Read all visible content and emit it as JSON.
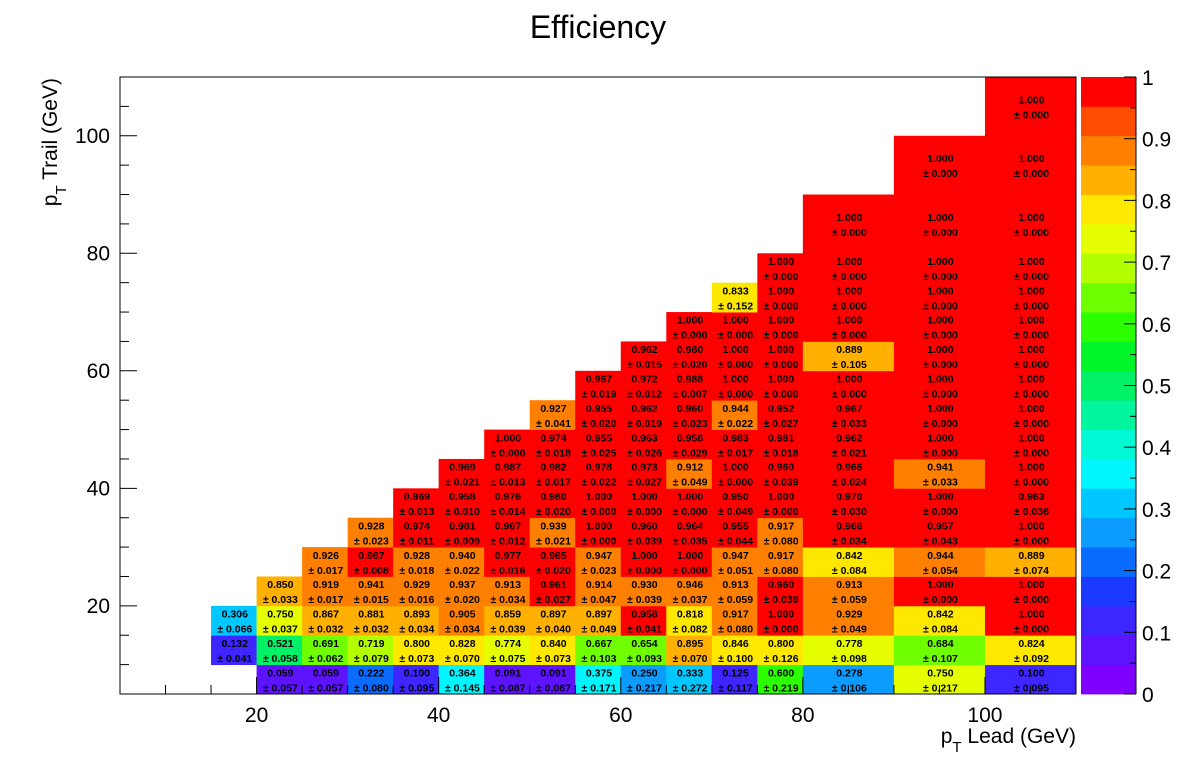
{
  "chart_data": {
    "type": "heatmap",
    "title": "Efficiency",
    "xlabel": "p_T Lead (GeV)",
    "ylabel": "p_T Trail (GeV)",
    "xlim": [
      5,
      110
    ],
    "ylim": [
      5,
      110
    ],
    "x_edges": [
      5,
      10,
      15,
      20,
      25,
      30,
      35,
      40,
      45,
      50,
      55,
      60,
      65,
      70,
      75,
      80,
      90,
      100,
      110
    ],
    "y_edges": [
      5,
      10,
      15,
      20,
      25,
      30,
      35,
      40,
      45,
      50,
      55,
      60,
      65,
      70,
      75,
      80,
      90,
      100,
      110
    ],
    "x_ticks": [
      20,
      40,
      60,
      80,
      100
    ],
    "y_ticks": [
      20,
      40,
      60,
      80,
      100
    ],
    "color_scale": {
      "min": 0,
      "max": 1,
      "ticks": [
        "0",
        "0.1",
        "0.2",
        "0.3",
        "0.4",
        "0.5",
        "0.6",
        "0.7",
        "0.8",
        "0.9",
        "1"
      ],
      "palette": [
        "#7f00ff",
        "#5e13ff",
        "#3d26ff",
        "#1c3aff",
        "#0a6bff",
        "#0b9cfd",
        "#00c7ff",
        "#00f5ff",
        "#00f8d5",
        "#00f59c",
        "#00f066",
        "#00f52b",
        "#2cff00",
        "#70ff00",
        "#b3ff00",
        "#e6ff00",
        "#ffe800",
        "#ffb000",
        "#ff8000",
        "#ff4d00",
        "#ff0000"
      ]
    },
    "cells": [
      {
        "xb": 3,
        "yb": 0,
        "value": "0.059",
        "error": "± 0.057"
      },
      {
        "xb": 4,
        "yb": 0,
        "value": "0.059",
        "error": "± 0.057"
      },
      {
        "xb": 5,
        "yb": 0,
        "value": "0.222",
        "error": "± 0.080"
      },
      {
        "xb": 6,
        "yb": 0,
        "value": "0.100",
        "error": "± 0.095"
      },
      {
        "xb": 7,
        "yb": 0,
        "value": "0.364",
        "error": "± 0.145"
      },
      {
        "xb": 8,
        "yb": 0,
        "value": "0.091",
        "error": "± 0.087"
      },
      {
        "xb": 9,
        "yb": 0,
        "value": "0.091",
        "error": "± 0.087"
      },
      {
        "xb": 10,
        "yb": 0,
        "value": "0.375",
        "error": "± 0.171"
      },
      {
        "xb": 11,
        "yb": 0,
        "value": "0.250",
        "error": "± 0.217"
      },
      {
        "xb": 12,
        "yb": 0,
        "value": "0.333",
        "error": "± 0.272"
      },
      {
        "xb": 13,
        "yb": 0,
        "value": "0.125",
        "error": "± 0.117"
      },
      {
        "xb": 14,
        "yb": 0,
        "value": "0.600",
        "error": "± 0.219"
      },
      {
        "xb": 15,
        "yb": 0,
        "value": "0.278",
        "error": "± 0.106"
      },
      {
        "xb": 16,
        "yb": 0,
        "value": "0.750",
        "error": "± 0.217"
      },
      {
        "xb": 17,
        "yb": 0,
        "value": "0.100",
        "error": "± 0.095"
      },
      {
        "xb": 2,
        "yb": 1,
        "value": "0.132",
        "error": "± 0.041"
      },
      {
        "xb": 3,
        "yb": 1,
        "value": "0.521",
        "error": "± 0.058"
      },
      {
        "xb": 4,
        "yb": 1,
        "value": "0.691",
        "error": "± 0.062"
      },
      {
        "xb": 5,
        "yb": 1,
        "value": "0.719",
        "error": "± 0.079"
      },
      {
        "xb": 6,
        "yb": 1,
        "value": "0.800",
        "error": "± 0.073"
      },
      {
        "xb": 7,
        "yb": 1,
        "value": "0.828",
        "error": "± 0.070"
      },
      {
        "xb": 8,
        "yb": 1,
        "value": "0.774",
        "error": "± 0.075"
      },
      {
        "xb": 9,
        "yb": 1,
        "value": "0.840",
        "error": "± 0.073"
      },
      {
        "xb": 10,
        "yb": 1,
        "value": "0.667",
        "error": "± 0.103"
      },
      {
        "xb": 11,
        "yb": 1,
        "value": "0.654",
        "error": "± 0.093"
      },
      {
        "xb": 12,
        "yb": 1,
        "value": "0.895",
        "error": "± 0.070"
      },
      {
        "xb": 13,
        "yb": 1,
        "value": "0.846",
        "error": "± 0.100"
      },
      {
        "xb": 14,
        "yb": 1,
        "value": "0.800",
        "error": "± 0.126"
      },
      {
        "xb": 15,
        "yb": 1,
        "value": "0.778",
        "error": "± 0.098"
      },
      {
        "xb": 16,
        "yb": 1,
        "value": "0.684",
        "error": "± 0.107"
      },
      {
        "xb": 17,
        "yb": 1,
        "value": "0.824",
        "error": "± 0.092"
      },
      {
        "xb": 2,
        "yb": 2,
        "value": "0.306",
        "error": "± 0.066"
      },
      {
        "xb": 3,
        "yb": 2,
        "value": "0.750",
        "error": "± 0.037"
      },
      {
        "xb": 4,
        "yb": 2,
        "value": "0.867",
        "error": "± 0.032"
      },
      {
        "xb": 5,
        "yb": 2,
        "value": "0.881",
        "error": "± 0.032"
      },
      {
        "xb": 6,
        "yb": 2,
        "value": "0.893",
        "error": "± 0.034"
      },
      {
        "xb": 7,
        "yb": 2,
        "value": "0.905",
        "error": "± 0.034"
      },
      {
        "xb": 8,
        "yb": 2,
        "value": "0.859",
        "error": "± 0.039"
      },
      {
        "xb": 9,
        "yb": 2,
        "value": "0.897",
        "error": "± 0.040"
      },
      {
        "xb": 10,
        "yb": 2,
        "value": "0.897",
        "error": "± 0.049"
      },
      {
        "xb": 11,
        "yb": 2,
        "value": "0.958",
        "error": "± 0.041"
      },
      {
        "xb": 12,
        "yb": 2,
        "value": "0.818",
        "error": "± 0.082"
      },
      {
        "xb": 13,
        "yb": 2,
        "value": "0.917",
        "error": "± 0.080"
      },
      {
        "xb": 14,
        "yb": 2,
        "value": "1.000",
        "error": "± 0.000"
      },
      {
        "xb": 15,
        "yb": 2,
        "value": "0.929",
        "error": "± 0.049"
      },
      {
        "xb": 16,
        "yb": 2,
        "value": "0.842",
        "error": "± 0.084"
      },
      {
        "xb": 17,
        "yb": 2,
        "value": "1.000",
        "error": "± 0.000"
      },
      {
        "xb": 3,
        "yb": 3,
        "value": "0.850",
        "error": "± 0.033"
      },
      {
        "xb": 4,
        "yb": 3,
        "value": "0.919",
        "error": "± 0.017"
      },
      {
        "xb": 5,
        "yb": 3,
        "value": "0.941",
        "error": "± 0.015"
      },
      {
        "xb": 6,
        "yb": 3,
        "value": "0.929",
        "error": "± 0.016"
      },
      {
        "xb": 7,
        "yb": 3,
        "value": "0.937",
        "error": "± 0.020"
      },
      {
        "xb": 8,
        "yb": 3,
        "value": "0.913",
        "error": "± 0.034"
      },
      {
        "xb": 9,
        "yb": 3,
        "value": "0.961",
        "error": "± 0.027"
      },
      {
        "xb": 10,
        "yb": 3,
        "value": "0.914",
        "error": "± 0.047"
      },
      {
        "xb": 11,
        "yb": 3,
        "value": "0.930",
        "error": "± 0.039"
      },
      {
        "xb": 12,
        "yb": 3,
        "value": "0.946",
        "error": "± 0.037"
      },
      {
        "xb": 13,
        "yb": 3,
        "value": "0.913",
        "error": "± 0.059"
      },
      {
        "xb": 14,
        "yb": 3,
        "value": "0.960",
        "error": "± 0.039"
      },
      {
        "xb": 15,
        "yb": 3,
        "value": "0.913",
        "error": "± 0.059"
      },
      {
        "xb": 16,
        "yb": 3,
        "value": "1.000",
        "error": "± 0.000"
      },
      {
        "xb": 17,
        "yb": 3,
        "value": "1.000",
        "error": "± 0.000"
      },
      {
        "xb": 4,
        "yb": 4,
        "value": "0.926",
        "error": "± 0.017"
      },
      {
        "xb": 5,
        "yb": 4,
        "value": "0.967",
        "error": "± 0.008"
      },
      {
        "xb": 6,
        "yb": 4,
        "value": "0.928",
        "error": "± 0.018"
      },
      {
        "xb": 7,
        "yb": 4,
        "value": "0.940",
        "error": "± 0.022"
      },
      {
        "xb": 8,
        "yb": 4,
        "value": "0.977",
        "error": "± 0.016"
      },
      {
        "xb": 9,
        "yb": 4,
        "value": "0.965",
        "error": "± 0.020"
      },
      {
        "xb": 10,
        "yb": 4,
        "value": "0.947",
        "error": "± 0.023"
      },
      {
        "xb": 11,
        "yb": 4,
        "value": "1.000",
        "error": "± 0.000"
      },
      {
        "xb": 12,
        "yb": 4,
        "value": "1.000",
        "error": "± 0.000"
      },
      {
        "xb": 13,
        "yb": 4,
        "value": "0.947",
        "error": "± 0.051"
      },
      {
        "xb": 14,
        "yb": 4,
        "value": "0.917",
        "error": "± 0.080"
      },
      {
        "xb": 15,
        "yb": 4,
        "value": "0.842",
        "error": "± 0.084"
      },
      {
        "xb": 16,
        "yb": 4,
        "value": "0.944",
        "error": "± 0.054"
      },
      {
        "xb": 17,
        "yb": 4,
        "value": "0.889",
        "error": "± 0.074"
      },
      {
        "xb": 5,
        "yb": 5,
        "value": "0.928",
        "error": "± 0.023"
      },
      {
        "xb": 6,
        "yb": 5,
        "value": "0.974",
        "error": "± 0.011"
      },
      {
        "xb": 7,
        "yb": 5,
        "value": "0.981",
        "error": "± 0.009"
      },
      {
        "xb": 8,
        "yb": 5,
        "value": "0.967",
        "error": "± 0.012"
      },
      {
        "xb": 9,
        "yb": 5,
        "value": "0.939",
        "error": "± 0.021"
      },
      {
        "xb": 10,
        "yb": 5,
        "value": "1.000",
        "error": "± 0.000"
      },
      {
        "xb": 11,
        "yb": 5,
        "value": "0.960",
        "error": "± 0.039"
      },
      {
        "xb": 12,
        "yb": 5,
        "value": "0.964",
        "error": "± 0.035"
      },
      {
        "xb": 13,
        "yb": 5,
        "value": "0.955",
        "error": "± 0.044"
      },
      {
        "xb": 14,
        "yb": 5,
        "value": "0.917",
        "error": "± 0.080"
      },
      {
        "xb": 15,
        "yb": 5,
        "value": "0.966",
        "error": "± 0.034"
      },
      {
        "xb": 16,
        "yb": 5,
        "value": "0.957",
        "error": "± 0.043"
      },
      {
        "xb": 17,
        "yb": 5,
        "value": "1.000",
        "error": "± 0.000"
      },
      {
        "xb": 6,
        "yb": 6,
        "value": "0.969",
        "error": "± 0.013"
      },
      {
        "xb": 7,
        "yb": 6,
        "value": "0.958",
        "error": "± 0.010"
      },
      {
        "xb": 8,
        "yb": 6,
        "value": "0.976",
        "error": "± 0.014"
      },
      {
        "xb": 9,
        "yb": 6,
        "value": "0.980",
        "error": "± 0.020"
      },
      {
        "xb": 10,
        "yb": 6,
        "value": "1.000",
        "error": "± 0.000"
      },
      {
        "xb": 11,
        "yb": 6,
        "value": "1.000",
        "error": "± 0.000"
      },
      {
        "xb": 12,
        "yb": 6,
        "value": "1.000",
        "error": "± 0.000"
      },
      {
        "xb": 13,
        "yb": 6,
        "value": "0.950",
        "error": "± 0.049"
      },
      {
        "xb": 14,
        "yb": 6,
        "value": "1.000",
        "error": "± 0.000"
      },
      {
        "xb": 15,
        "yb": 6,
        "value": "0.970",
        "error": "± 0.030"
      },
      {
        "xb": 16,
        "yb": 6,
        "value": "1.000",
        "error": "± 0.000"
      },
      {
        "xb": 17,
        "yb": 6,
        "value": "0.963",
        "error": "± 0.036"
      },
      {
        "xb": 7,
        "yb": 7,
        "value": "0.969",
        "error": "± 0.021"
      },
      {
        "xb": 8,
        "yb": 7,
        "value": "0.987",
        "error": "± 0.013"
      },
      {
        "xb": 9,
        "yb": 7,
        "value": "0.982",
        "error": "± 0.017"
      },
      {
        "xb": 10,
        "yb": 7,
        "value": "0.978",
        "error": "± 0.022"
      },
      {
        "xb": 11,
        "yb": 7,
        "value": "0.973",
        "error": "± 0.027"
      },
      {
        "xb": 12,
        "yb": 7,
        "value": "0.912",
        "error": "± 0.049"
      },
      {
        "xb": 13,
        "yb": 7,
        "value": "1.000",
        "error": "± 0.000"
      },
      {
        "xb": 14,
        "yb": 7,
        "value": "0.960",
        "error": "± 0.039"
      },
      {
        "xb": 15,
        "yb": 7,
        "value": "0.966",
        "error": "± 0.024"
      },
      {
        "xb": 16,
        "yb": 7,
        "value": "0.941",
        "error": "± 0.033"
      },
      {
        "xb": 17,
        "yb": 7,
        "value": "1.000",
        "error": "± 0.000"
      },
      {
        "xb": 8,
        "yb": 8,
        "value": "1.000",
        "error": "± 0.000"
      },
      {
        "xb": 9,
        "yb": 8,
        "value": "0.974",
        "error": "± 0.018"
      },
      {
        "xb": 10,
        "yb": 8,
        "value": "0.955",
        "error": "± 0.025"
      },
      {
        "xb": 11,
        "yb": 8,
        "value": "0.963",
        "error": "± 0.026"
      },
      {
        "xb": 12,
        "yb": 8,
        "value": "0.958",
        "error": "± 0.029"
      },
      {
        "xb": 13,
        "yb": 8,
        "value": "0.983",
        "error": "± 0.017"
      },
      {
        "xb": 14,
        "yb": 8,
        "value": "0.981",
        "error": "± 0.018"
      },
      {
        "xb": 15,
        "yb": 8,
        "value": "0.962",
        "error": "± 0.021"
      },
      {
        "xb": 16,
        "yb": 8,
        "value": "1.000",
        "error": "± 0.000"
      },
      {
        "xb": 17,
        "yb": 8,
        "value": "1.000",
        "error": "± 0.000"
      },
      {
        "xb": 9,
        "yb": 9,
        "value": "0.927",
        "error": "± 0.041"
      },
      {
        "xb": 10,
        "yb": 9,
        "value": "0.955",
        "error": "± 0.020"
      },
      {
        "xb": 11,
        "yb": 9,
        "value": "0.962",
        "error": "± 0.019"
      },
      {
        "xb": 12,
        "yb": 9,
        "value": "0.960",
        "error": "± 0.023"
      },
      {
        "xb": 13,
        "yb": 9,
        "value": "0.944",
        "error": "± 0.022"
      },
      {
        "xb": 14,
        "yb": 9,
        "value": "0.952",
        "error": "± 0.027"
      },
      {
        "xb": 15,
        "yb": 9,
        "value": "0.967",
        "error": "± 0.033"
      },
      {
        "xb": 16,
        "yb": 9,
        "value": "1.000",
        "error": "± 0.000"
      },
      {
        "xb": 17,
        "yb": 9,
        "value": "1.000",
        "error": "± 0.000"
      },
      {
        "xb": 10,
        "yb": 10,
        "value": "0.967",
        "error": "± 0.019"
      },
      {
        "xb": 11,
        "yb": 10,
        "value": "0.972",
        "error": "± 0.012"
      },
      {
        "xb": 12,
        "yb": 10,
        "value": "0.988",
        "error": "± 0.007"
      },
      {
        "xb": 13,
        "yb": 10,
        "value": "1.000",
        "error": "± 0.000"
      },
      {
        "xb": 14,
        "yb": 10,
        "value": "1.000",
        "error": "± 0.000"
      },
      {
        "xb": 15,
        "yb": 10,
        "value": "1.000",
        "error": "± 0.000"
      },
      {
        "xb": 16,
        "yb": 10,
        "value": "1.000",
        "error": "± 0.000"
      },
      {
        "xb": 17,
        "yb": 10,
        "value": "1.000",
        "error": "± 0.000"
      },
      {
        "xb": 11,
        "yb": 11,
        "value": "0.962",
        "error": "± 0.015"
      },
      {
        "xb": 12,
        "yb": 11,
        "value": "0.980",
        "error": "± 0.020"
      },
      {
        "xb": 13,
        "yb": 11,
        "value": "1.000",
        "error": "± 0.000"
      },
      {
        "xb": 14,
        "yb": 11,
        "value": "1.000",
        "error": "± 0.000"
      },
      {
        "xb": 15,
        "yb": 11,
        "value": "0.889",
        "error": "± 0.105"
      },
      {
        "xb": 16,
        "yb": 11,
        "value": "1.000",
        "error": "± 0.000"
      },
      {
        "xb": 17,
        "yb": 11,
        "value": "1.000",
        "error": "± 0.000"
      },
      {
        "xb": 12,
        "yb": 12,
        "value": "1.000",
        "error": "± 0.000"
      },
      {
        "xb": 13,
        "yb": 12,
        "value": "1.000",
        "error": "± 0.000"
      },
      {
        "xb": 14,
        "yb": 12,
        "value": "1.000",
        "error": "± 0.000"
      },
      {
        "xb": 15,
        "yb": 12,
        "value": "1.000",
        "error": "± 0.000"
      },
      {
        "xb": 16,
        "yb": 12,
        "value": "1.000",
        "error": "± 0.000"
      },
      {
        "xb": 17,
        "yb": 12,
        "value": "1.000",
        "error": "± 0.000"
      },
      {
        "xb": 13,
        "yb": 13,
        "value": "0.833",
        "error": "± 0.152"
      },
      {
        "xb": 14,
        "yb": 13,
        "value": "1.000",
        "error": "± 0.000"
      },
      {
        "xb": 15,
        "yb": 13,
        "value": "1.000",
        "error": "± 0.000"
      },
      {
        "xb": 16,
        "yb": 13,
        "value": "1.000",
        "error": "± 0.000"
      },
      {
        "xb": 17,
        "yb": 13,
        "value": "1.000",
        "error": "± 0.000"
      },
      {
        "xb": 14,
        "yb": 14,
        "value": "1.000",
        "error": "± 0.000"
      },
      {
        "xb": 15,
        "yb": 14,
        "value": "1.000",
        "error": "± 0.000"
      },
      {
        "xb": 16,
        "yb": 14,
        "value": "1.000",
        "error": "± 0.000"
      },
      {
        "xb": 17,
        "yb": 14,
        "value": "1.000",
        "error": "± 0.000"
      },
      {
        "xb": 15,
        "yb": 15,
        "value": "1.000",
        "error": "± 0.000"
      },
      {
        "xb": 16,
        "yb": 15,
        "value": "1.000",
        "error": "± 0.000"
      },
      {
        "xb": 17,
        "yb": 15,
        "value": "1.000",
        "error": "± 0.000"
      },
      {
        "xb": 16,
        "yb": 16,
        "value": "1.000",
        "error": "± 0.000"
      },
      {
        "xb": 17,
        "yb": 16,
        "value": "1.000",
        "error": "± 0.000"
      },
      {
        "xb": 17,
        "yb": 17,
        "value": "1.000",
        "error": "± 0.000"
      }
    ]
  }
}
